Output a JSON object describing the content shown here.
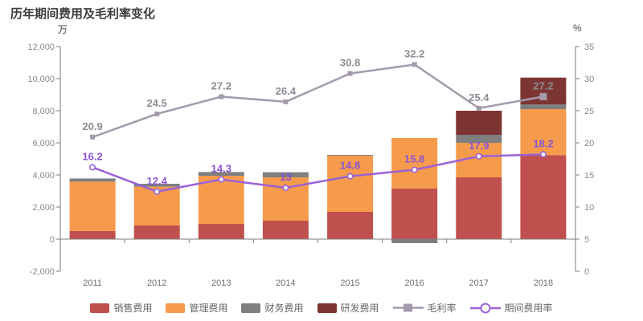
{
  "title": "历年期间费用及毛利率变化",
  "axes": {
    "left_unit": "万",
    "right_unit": "%",
    "left_ticks": [
      "12,000",
      "10,000",
      "8,000",
      "6,000",
      "4,000",
      "2,000",
      "0",
      "-2,000"
    ],
    "right_ticks": [
      "35",
      "30",
      "25",
      "20",
      "15",
      "10",
      "5",
      "0"
    ]
  },
  "chart_data": {
    "type": "bar",
    "subtype": "stacked-bar-with-lines",
    "title": "历年期间费用及毛利率变化",
    "categories": [
      "2011",
      "2012",
      "2013",
      "2014",
      "2015",
      "2016",
      "2017",
      "2018"
    ],
    "left_axis": {
      "unit": "万",
      "min": -2000,
      "max": 12000,
      "tick_step": 2000
    },
    "right_axis": {
      "unit": "%",
      "min": 0,
      "max": 35,
      "tick_step": 5
    },
    "legend_position": "bottom",
    "grid": "off",
    "bar_series": [
      {
        "key": "sales",
        "name": "销售费用",
        "color": "#c0504d",
        "values": [
          500,
          850,
          950,
          1150,
          1700,
          3150,
          3850,
          5235
        ]
      },
      {
        "key": "admin",
        "name": "管理费用",
        "color": "#f59b4b",
        "values": [
          3080,
          2420,
          3000,
          2700,
          3500,
          3150,
          2150,
          2865
        ]
      },
      {
        "key": "finance",
        "name": "财务费用",
        "color": "#7f7f7f",
        "values": [
          200,
          180,
          230,
          320,
          50,
          -250,
          500,
          300
        ]
      },
      {
        "key": "rd",
        "name": "研发费用",
        "color": "#7d3533",
        "values": [
          0,
          0,
          0,
          0,
          0,
          0,
          1500,
          1665
        ]
      }
    ],
    "line_series": [
      {
        "key": "gross-margin",
        "name": "毛利率",
        "color": "#a49aab",
        "label_color": "#8c8c94",
        "marker": "square",
        "axis": "right",
        "values": [
          20.9,
          24.5,
          27.2,
          26.4,
          30.8,
          32.2,
          25.4,
          27.2
        ],
        "labels": [
          "20.9",
          "24.5",
          "27.2",
          "26.4",
          "30.8",
          "32.2",
          "25.4",
          "27.2"
        ]
      },
      {
        "key": "period-expense-ratio",
        "name": "期间费用率",
        "color": "#9a62d6",
        "label_color": "#8a54d4",
        "marker": "circle-white",
        "axis": "right",
        "values": [
          16.2,
          12.4,
          14.3,
          13,
          14.8,
          15.8,
          17.9,
          18.2
        ],
        "labels": [
          "16.2",
          "12.4",
          "14.3",
          "13",
          "14.8",
          "15.8",
          "17.9",
          "18.2"
        ]
      }
    ]
  }
}
